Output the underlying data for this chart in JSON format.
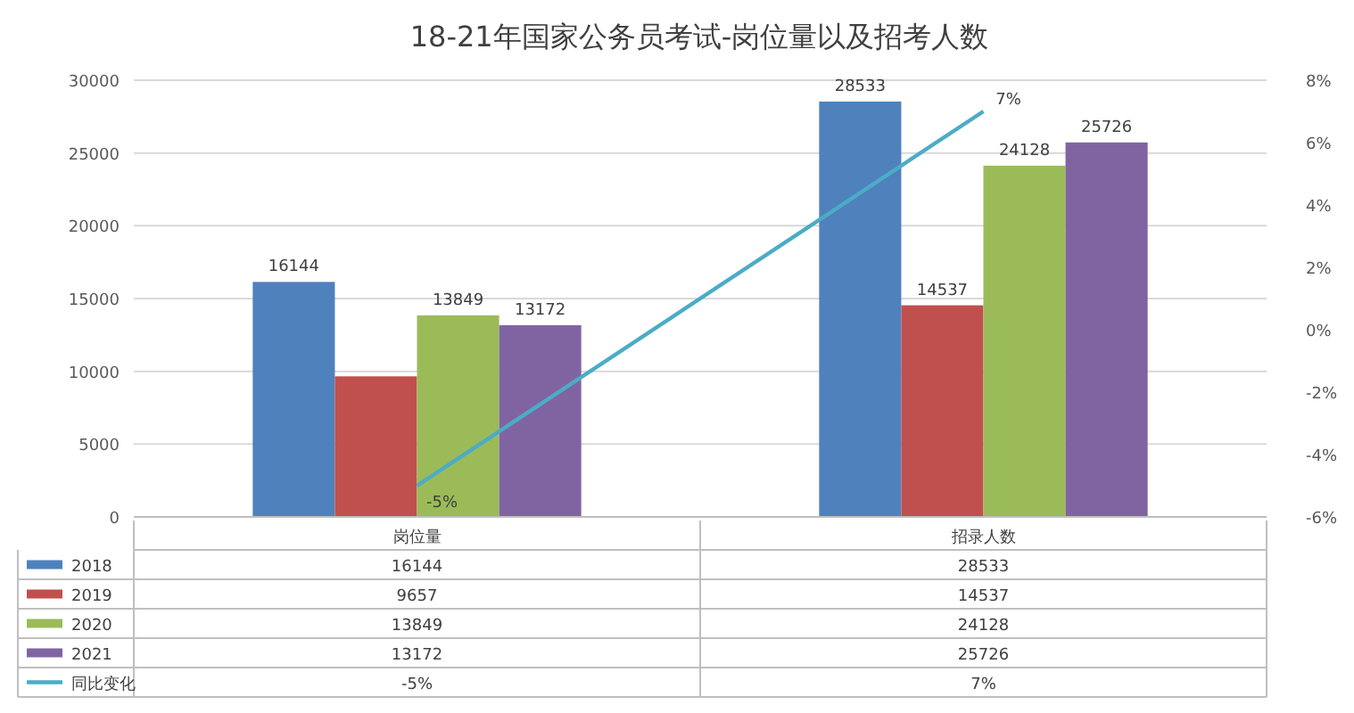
{
  "chart_data": {
    "type": "bar",
    "title": "18-21年国家公务员考试-岗位量以及招考人数",
    "categories": [
      "岗位量",
      "招录人数"
    ],
    "series": [
      {
        "name": "2018",
        "color": "#4f81bd",
        "values": [
          16144,
          28533
        ]
      },
      {
        "name": "2019",
        "color": "#c0504d",
        "values": [
          9657,
          14537
        ]
      },
      {
        "name": "2020",
        "color": "#9bbb59",
        "values": [
          13849,
          24128
        ]
      },
      {
        "name": "2021",
        "color": "#8064a2",
        "values": [
          13172,
          25726
        ]
      },
      {
        "name": "同比变化",
        "type": "line",
        "axis": "y2",
        "color": "#4bacc6",
        "values": [
          -5,
          7
        ],
        "value_labels": [
          "-5%",
          "7%"
        ]
      }
    ],
    "ylim": [
      0,
      30000
    ],
    "yticks": [
      0,
      5000,
      10000,
      15000,
      20000,
      25000,
      30000
    ],
    "y2lim": [
      -6,
      8
    ],
    "y2ticks": [
      {
        "value": -6,
        "label": "-6%"
      },
      {
        "value": -4,
        "label": "-4%"
      },
      {
        "value": -2,
        "label": "-2%"
      },
      {
        "value": 0,
        "label": "0%"
      },
      {
        "value": 2,
        "label": "2%"
      },
      {
        "value": 4,
        "label": "4%"
      },
      {
        "value": 6,
        "label": "6%"
      },
      {
        "value": 8,
        "label": "8%"
      }
    ],
    "grid": "y",
    "legend": "bottom",
    "data_labels": true,
    "annotations": [
      "16144",
      "13849",
      "13172",
      "28533",
      "14537",
      "24128",
      "25726"
    ]
  }
}
